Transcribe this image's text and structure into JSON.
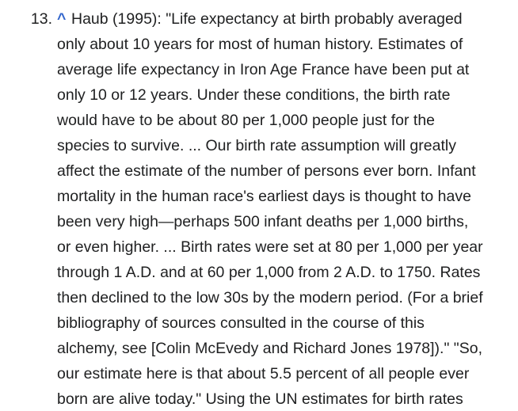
{
  "reference": {
    "number": "13.",
    "backlink": "^",
    "lines": [
      "Haub (1995): \"Life expectancy at birth probably averaged",
      "only about 10 years for most of human history. Estimates of",
      "average life expectancy in Iron Age France have been put at",
      "only 10 or 12 years. Under these conditions, the birth rate",
      "would have to be about 80 per 1,000 people just for the",
      "species to survive. ... Our birth rate assumption will greatly",
      "affect the estimate of the number of persons ever born. Infant",
      "mortality in the human race's earliest days is thought to have",
      "been very high—perhaps 500 infant deaths per 1,000 births,",
      "or even higher. ... Birth rates were set at 80 per 1,000 per year",
      "through 1 A.D. and at 60 per 1,000 from 2 A.D. to 1750. Rates",
      "then declined to the low 30s by the modern period. (For a brief",
      "bibliography of sources consulted in the course of this",
      "alchemy, see [Colin McEvedy and Richard Jones 1978]).\" \"So,",
      "our estimate here is that about 5.5 percent of all people ever",
      "born are alive today.\" Using the UN estimates for birth rates"
    ]
  }
}
